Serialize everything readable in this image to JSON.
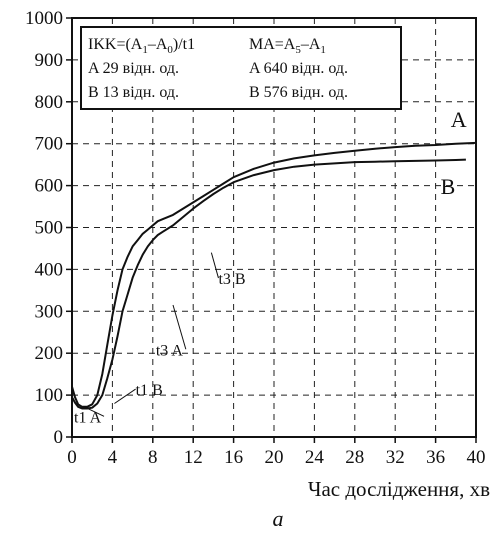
{
  "chart_data": {
    "type": "line",
    "title": "",
    "xlabel": "Час дослідження, хв",
    "ylabel": "",
    "caption": "а",
    "xlim": [
      0,
      40
    ],
    "ylim": [
      0,
      1000
    ],
    "x_ticks": [
      0,
      4,
      8,
      12,
      16,
      20,
      24,
      28,
      32,
      36,
      40
    ],
    "y_ticks": [
      0,
      100,
      200,
      300,
      400,
      500,
      600,
      700,
      800,
      900,
      1000
    ],
    "grid": true,
    "legend_box": {
      "col1": [
        {
          "text": "IKK=(A",
          "sub1": "1",
          "mid": "–A",
          "sub2": "0",
          "tail": ")/t1"
        },
        {
          "text": "A 29 відн. од."
        },
        {
          "text": "B 13 відн. од."
        }
      ],
      "col2": [
        {
          "text": "MA=A",
          "sub1": "5",
          "mid": "–A",
          "sub2": "1",
          "tail": ""
        },
        {
          "text": "A 640 відн. од."
        },
        {
          "text": "B 576 відн. од."
        }
      ]
    },
    "series": [
      {
        "name": "A",
        "x": [
          0,
          0.3,
          0.6,
          1,
          1.5,
          2,
          2.5,
          3,
          3.5,
          4,
          4.5,
          5,
          5.5,
          6,
          6.5,
          7,
          7.5,
          8,
          8.5,
          9,
          10,
          11,
          12,
          13,
          14,
          15,
          16,
          18,
          20,
          22,
          24,
          26,
          28,
          30,
          32,
          34,
          36,
          38,
          40
        ],
        "y": [
          120,
          95,
          78,
          72,
          72,
          78,
          100,
          150,
          220,
          290,
          350,
          400,
          430,
          455,
          470,
          485,
          495,
          505,
          515,
          520,
          530,
          545,
          560,
          575,
          590,
          605,
          620,
          640,
          655,
          665,
          672,
          678,
          683,
          688,
          692,
          695,
          697,
          700,
          702
        ]
      },
      {
        "name": "B",
        "x": [
          0,
          0.3,
          0.6,
          1,
          1.5,
          2,
          2.5,
          3,
          3.5,
          4,
          4.5,
          5,
          5.5,
          6,
          6.5,
          7,
          7.5,
          8,
          8.5,
          9,
          10,
          11,
          12,
          13,
          14,
          15,
          16,
          18,
          20,
          22,
          24,
          26,
          28,
          30,
          32,
          34,
          36,
          38,
          39
        ],
        "y": [
          95,
          82,
          72,
          68,
          68,
          70,
          80,
          100,
          140,
          185,
          240,
          300,
          340,
          380,
          410,
          435,
          455,
          470,
          482,
          490,
          505,
          525,
          545,
          563,
          580,
          595,
          608,
          625,
          637,
          645,
          650,
          653,
          656,
          657,
          658,
          659,
          660,
          661,
          662
        ]
      }
    ],
    "annotations": [
      {
        "text": "t1  A",
        "x": 0.2,
        "y": 35,
        "lx": 1.2,
        "ly": 72
      },
      {
        "text": "t1  B",
        "x": 6.3,
        "y": 100,
        "lx": 4.2,
        "ly": 80
      },
      {
        "text": "t3  A",
        "x": 8.3,
        "y": 195,
        "lx": 10.0,
        "ly": 315
      },
      {
        "text": "t3  B",
        "x": 14.5,
        "y": 365,
        "lx": 13.8,
        "ly": 440
      }
    ],
    "end_labels": [
      {
        "text": "A",
        "x": 37.5,
        "y": 740
      },
      {
        "text": "B",
        "x": 36.5,
        "y": 580
      }
    ]
  }
}
